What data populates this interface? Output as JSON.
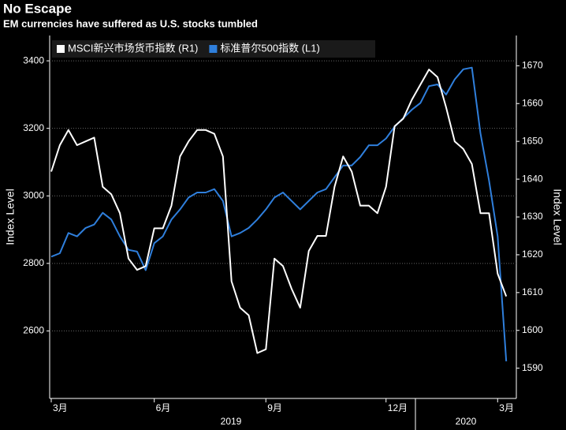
{
  "chart_data": {
    "type": "line",
    "title": "No Escape",
    "subtitle": "EM currencies have suffered as U.S. stocks tumbled",
    "categories": [
      "3月",
      null,
      null,
      null,
      null,
      null,
      null,
      null,
      null,
      null,
      null,
      null,
      "6月",
      null,
      null,
      null,
      null,
      null,
      null,
      null,
      null,
      null,
      null,
      null,
      null,
      "9月",
      null,
      null,
      null,
      null,
      null,
      null,
      null,
      null,
      null,
      null,
      null,
      null,
      null,
      "12月",
      null,
      null,
      null,
      null,
      null,
      null,
      null,
      null,
      null,
      null,
      null,
      null,
      "3月",
      null
    ],
    "x_year_labels": [
      "2019",
      "2020"
    ],
    "y_label": "Index Level",
    "y2_label": "Index Level",
    "ylim": [
      2400,
      3475
    ],
    "yticks": [
      2600,
      2800,
      3000,
      3200,
      3400
    ],
    "y2lim": [
      1582,
      1678
    ],
    "y2ticks": [
      1590,
      1600,
      1610,
      1620,
      1630,
      1640,
      1650,
      1660,
      1670
    ],
    "grid": true,
    "series": [
      {
        "name": "MSCI新兴市场货币指数 (R1)",
        "color": "#ffffff",
        "axis": "y2",
        "values": [
          1642,
          1649,
          1653,
          1649,
          1650,
          1651,
          1638,
          1636,
          1631,
          1619,
          1616,
          1617,
          1627,
          1627,
          1633,
          1646,
          1650,
          1653,
          1653,
          1652,
          1646,
          1613,
          1606,
          1604,
          1594,
          1595,
          1619,
          1617,
          1611,
          1606,
          1621,
          1625,
          1625,
          1638,
          1646,
          1642,
          1633,
          1633,
          1631,
          1638,
          1654,
          1656,
          1661,
          1665,
          1669,
          1667,
          1659,
          1650,
          1648,
          1644,
          1631,
          1631,
          1615,
          1609
        ]
      },
      {
        "name": "标准普尔500指数 (L1)",
        "color": "#2f7fdc",
        "axis": "y",
        "values": [
          2820,
          2830,
          2890,
          2880,
          2905,
          2915,
          2950,
          2930,
          2880,
          2840,
          2835,
          2780,
          2860,
          2880,
          2930,
          2960,
          2995,
          3010,
          3010,
          3020,
          2985,
          2880,
          2890,
          2905,
          2930,
          2960,
          2995,
          3010,
          2985,
          2960,
          2985,
          3010,
          3020,
          3055,
          3090,
          3090,
          3115,
          3150,
          3150,
          3170,
          3205,
          3230,
          3255,
          3275,
          3325,
          3330,
          3300,
          3345,
          3375,
          3380,
          3185,
          3045,
          2880,
          2510
        ]
      }
    ]
  }
}
